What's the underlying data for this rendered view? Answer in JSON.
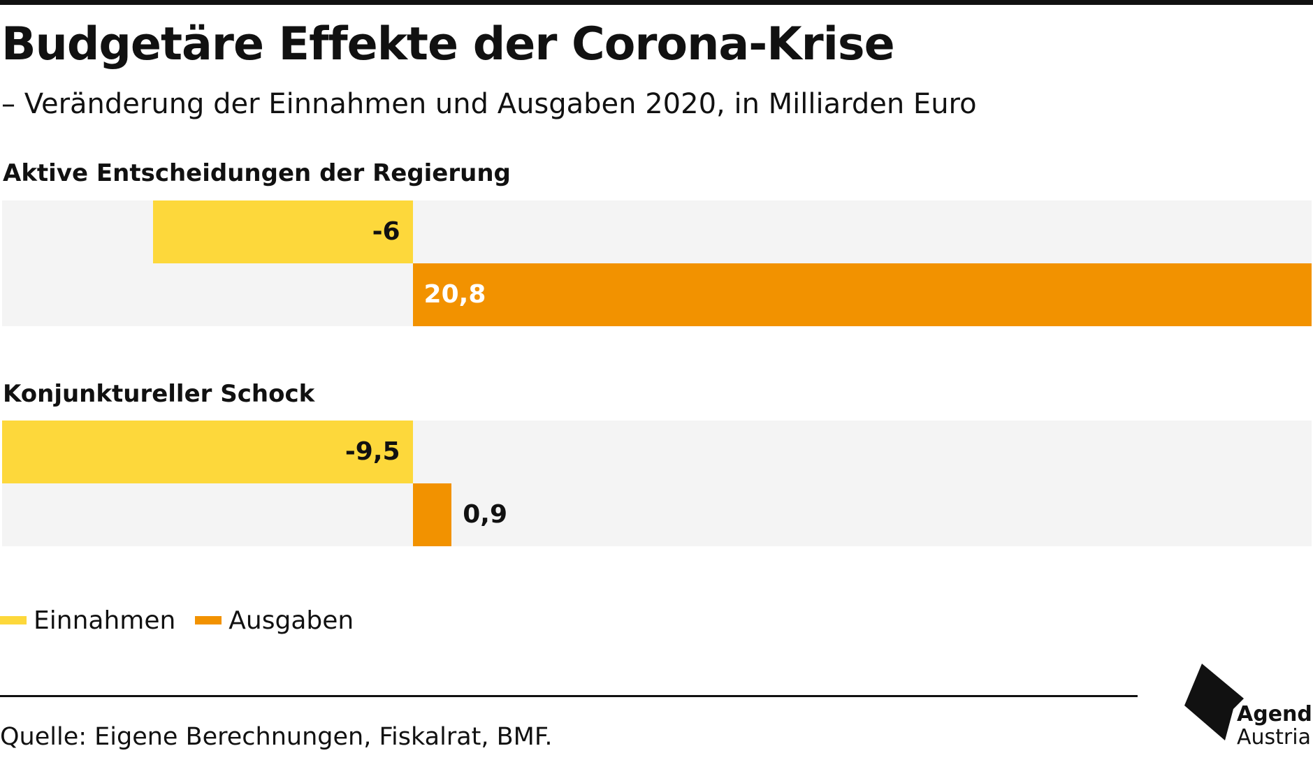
{
  "header": {
    "title": "Budgetäre Effekte der Corona-Krise",
    "subtitle": "– Veränderung der Einnahmen und Ausgaben 2020, in Milliarden Euro"
  },
  "chart_data": {
    "type": "bar",
    "orientation": "horizontal",
    "title": "Budgetäre Effekte der Corona-Krise",
    "subtitle": "– Veränderung der Einnahmen und Ausgaben 2020, in Milliarden Euro",
    "groups": [
      {
        "name": "Aktive Entscheidungen der Regierung",
        "bars": [
          {
            "series": "Einnahmen",
            "value": -6,
            "label": "-6"
          },
          {
            "series": "Ausgaben",
            "value": 20.8,
            "label": "20,8"
          }
        ]
      },
      {
        "name": "Konjunktureller Schock",
        "bars": [
          {
            "series": "Einnahmen",
            "value": -9.5,
            "label": "-9,5"
          },
          {
            "series": "Ausgaben",
            "value": 0.9,
            "label": "0,9"
          }
        ]
      }
    ],
    "xlim": [
      -9.5,
      20.8
    ],
    "grid": false,
    "legend": {
      "placement": "bottom-left",
      "entries": [
        {
          "name": "Einnahmen",
          "color": "#fdd83b"
        },
        {
          "name": "Ausgaben",
          "color": "#f29200"
        }
      ]
    }
  },
  "footer": {
    "source": "Quelle: Eigene Berechnungen, Fiskalrat, BMF.",
    "logo_line1": "Agenda",
    "logo_line2": "Austria"
  }
}
